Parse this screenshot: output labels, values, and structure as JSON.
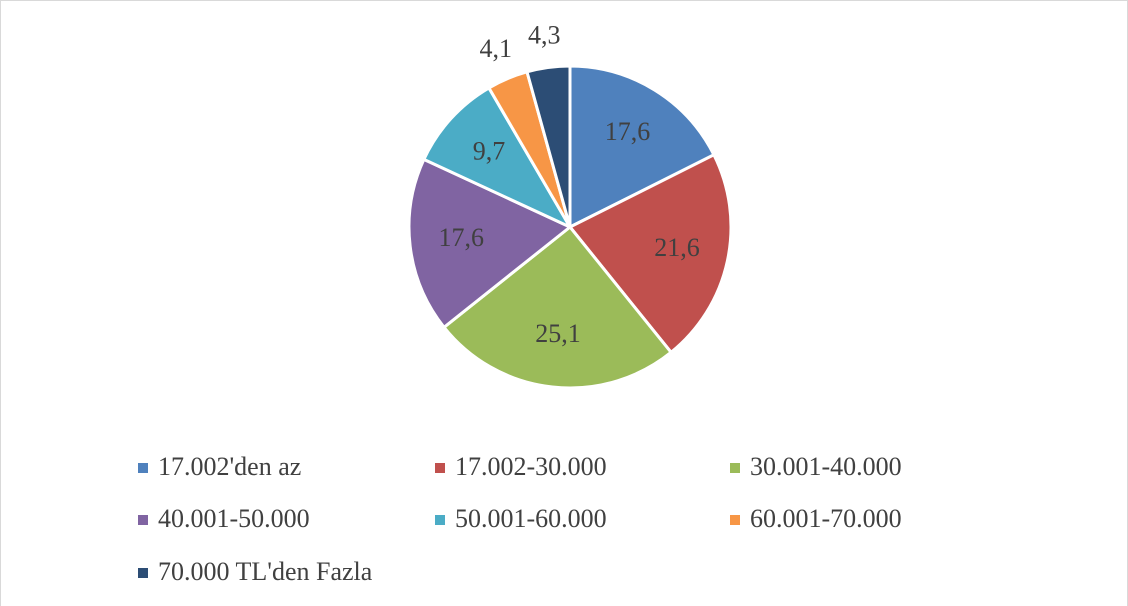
{
  "chart_data": {
    "type": "pie",
    "categories": [
      "17.002'den az",
      "17.002-30.000",
      "30.001-40.000",
      "40.001-50.000",
      "50.001-60.000",
      "60.001-70.000",
      "70.000 TL'den Fazla"
    ],
    "values": [
      17.6,
      21.6,
      25.1,
      17.6,
      9.7,
      4.1,
      4.3
    ],
    "value_labels": [
      "17,6",
      "21,6",
      "25,1",
      "17,6",
      "9,7",
      "4,1",
      "4,3"
    ],
    "colors": [
      "#4f81bd",
      "#c0504d",
      "#9bbb59",
      "#8064a2",
      "#4bacc6",
      "#f79646",
      "#2c4d75"
    ],
    "legend": "bottom"
  }
}
